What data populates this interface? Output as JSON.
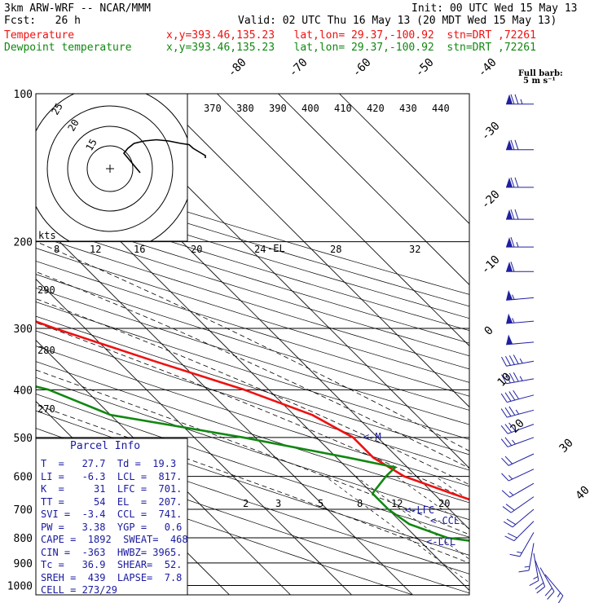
{
  "header": {
    "model": "3km ARW-WRF -- NCAR/MMM",
    "init": "Init: 00 UTC Wed 15 May 13",
    "fcst": "Fcst:   26 h",
    "valid": "Valid: 02 UTC Thu 16 May 13 (20 MDT Wed 15 May 13)",
    "temp_label": "Temperature",
    "temp_loc": "x,y=393.46,135.23   lat,lon= 29.37,-100.92  stn=DRT ,72261",
    "dew_label": "Dewpoint temperature",
    "dew_loc": "x,y=393.46,135.23   lat,lon= 29.37,-100.92  stn=DRT ,72261"
  },
  "barb_legend": {
    "line1": "Full barb:",
    "line2": "5 m s⁻¹"
  },
  "hodo": {
    "kts": "kts"
  },
  "parcel": {
    "title": "Parcel Info",
    "rows": [
      "T  =   27.7  Td =  19.3",
      "LI =   -6.3  LCL =  817.",
      "K  =     31  LFC =  701.",
      "TT =     54  EL  =  207.",
      "SVI =  -3.4  CCL =  741.",
      "PW =   3.38  YGP =   0.6",
      "CAPE =  1892  SWEAT=  468",
      "CIN =  -363  HWBZ= 3965.",
      "Tc =   36.9  SHEAR=  52.",
      "SREH =  439  LAPSE=  7.8",
      "CELL = 273/29"
    ]
  },
  "colors": {
    "temperature": "#ee1111",
    "dewpoint": "#118811",
    "text_blue": "#1a1aa0",
    "barb": "#2020a0"
  },
  "chart_data": {
    "type": "line",
    "pressure_ticks": [
      "100",
      "200",
      "300",
      "400",
      "500",
      "600",
      "700",
      "800",
      "900",
      "1000"
    ],
    "isotherm_labels": [
      "-80",
      "-70",
      "-60",
      "-50",
      "-40",
      "-30",
      "-20",
      "-10",
      "0",
      "10",
      "20",
      "30",
      "40"
    ],
    "theta_labels": [
      "370",
      "380",
      "390",
      "400",
      "410",
      "420",
      "430",
      "440"
    ],
    "dryad_labels": [
      "290",
      "280",
      "270"
    ],
    "mixratio_labels": [
      "2",
      "3",
      "5",
      "8",
      "12",
      "20"
    ],
    "hodo_speed_labels": [
      "8",
      "12",
      "16",
      "20",
      "24",
      "28",
      "32"
    ],
    "hodo_ring_labels": [
      "25",
      "20",
      "15"
    ],
    "annotations": [
      "EL",
      "LFC",
      "CCL",
      "LCL",
      "M"
    ],
    "series": [
      {
        "name": "Temperature",
        "pressure": [
          100,
          125,
          150,
          200,
          250,
          300,
          350,
          400,
          450,
          500,
          550,
          600,
          650,
          700,
          750,
          800,
          850,
          875,
          900,
          925,
          950
        ],
        "values": [
          -70,
          -66,
          -64,
          -57,
          -46,
          -35,
          -24,
          -14,
          -7,
          -4,
          -4,
          -2,
          3,
          8,
          12,
          16,
          19,
          22,
          22,
          27,
          27.7
        ]
      },
      {
        "name": "Dewpoint temperature",
        "pressure": [
          100,
          125,
          150,
          175,
          200,
          250,
          300,
          350,
          400,
          450,
          500,
          550,
          575,
          600,
          650,
          700,
          750,
          800,
          850,
          875,
          900,
          925,
          950
        ],
        "values": [
          -71,
          -76,
          -82,
          -84,
          -80,
          -78,
          -68,
          -60,
          -46,
          -40,
          -22,
          -8,
          -2,
          -5,
          -10,
          -10,
          -9,
          -5,
          9,
          14,
          17,
          19,
          19.3
        ]
      }
    ],
    "winds": [
      {
        "p": 105,
        "dir": 270,
        "kt": 75
      },
      {
        "p": 130,
        "dir": 270,
        "kt": 70
      },
      {
        "p": 155,
        "dir": 270,
        "kt": 70
      },
      {
        "p": 180,
        "dir": 270,
        "kt": 70
      },
      {
        "p": 205,
        "dir": 270,
        "kt": 65
      },
      {
        "p": 230,
        "dir": 270,
        "kt": 60
      },
      {
        "p": 260,
        "dir": 265,
        "kt": 55
      },
      {
        "p": 290,
        "dir": 265,
        "kt": 55
      },
      {
        "p": 320,
        "dir": 265,
        "kt": 50
      },
      {
        "p": 350,
        "dir": 260,
        "kt": 45
      },
      {
        "p": 380,
        "dir": 260,
        "kt": 45
      },
      {
        "p": 410,
        "dir": 255,
        "kt": 40
      },
      {
        "p": 440,
        "dir": 255,
        "kt": 35
      },
      {
        "p": 470,
        "dir": 250,
        "kt": 30
      },
      {
        "p": 500,
        "dir": 250,
        "kt": 25
      },
      {
        "p": 540,
        "dir": 245,
        "kt": 20
      },
      {
        "p": 580,
        "dir": 245,
        "kt": 15
      },
      {
        "p": 620,
        "dir": 240,
        "kt": 15
      },
      {
        "p": 660,
        "dir": 235,
        "kt": 20
      },
      {
        "p": 700,
        "dir": 230,
        "kt": 20
      },
      {
        "p": 740,
        "dir": 225,
        "kt": 20
      },
      {
        "p": 780,
        "dir": 210,
        "kt": 15
      },
      {
        "p": 820,
        "dir": 190,
        "kt": 15
      },
      {
        "p": 860,
        "dir": 170,
        "kt": 15
      },
      {
        "p": 890,
        "dir": 160,
        "kt": 20
      },
      {
        "p": 920,
        "dir": 150,
        "kt": 20
      },
      {
        "p": 950,
        "dir": 140,
        "kt": 15
      }
    ],
    "hodograph": {
      "u": [
        -2,
        -4,
        -6,
        -8,
        -10,
        -8,
        -5,
        0,
        6,
        12,
        18,
        22,
        24,
        26,
        28,
        30,
        30
      ],
      "v": [
        10,
        14,
        18,
        22,
        26,
        30,
        34,
        36,
        37,
        36,
        34,
        33,
        30,
        28,
        26,
        24,
        22
      ]
    }
  }
}
